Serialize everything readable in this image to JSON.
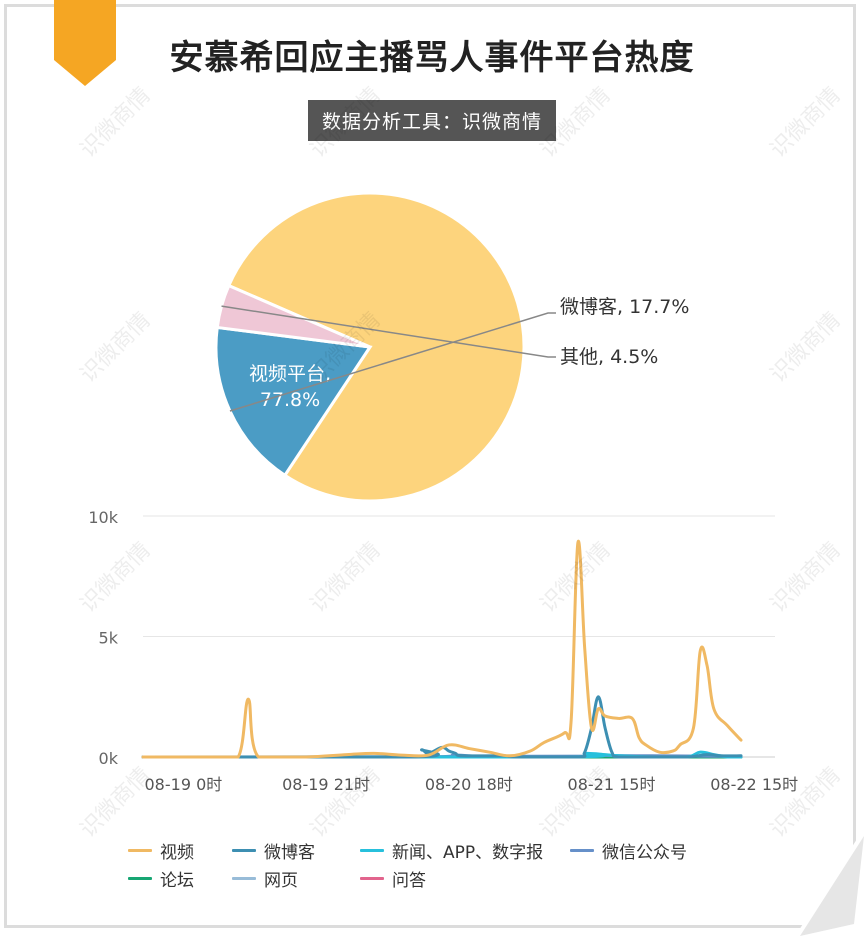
{
  "header": {
    "title": "安慕希回应主播骂人事件平台热度",
    "subtitle": "数据分析工具：识微商情"
  },
  "watermark_text": "识微商情",
  "colors": {
    "ribbon": "#f5a623",
    "pie": [
      "#fdd47d",
      "#4b9cc5",
      "#efc7d6"
    ],
    "series": [
      "#f0b963",
      "#3d8fb2",
      "#27c0dc",
      "#6690c9",
      "#17a673",
      "#98bcd8",
      "#e2648d"
    ]
  },
  "chart_data": [
    {
      "type": "pie",
      "slices": [
        {
          "label": "视频平台",
          "value": 77.8,
          "display": "视频平台,\n77.8%"
        },
        {
          "label": "微博客",
          "value": 17.7,
          "display": "微博客, 17.7%"
        },
        {
          "label": "其他",
          "value": 4.5,
          "display": "其他, 4.5%"
        }
      ]
    },
    {
      "type": "line",
      "ylim": [
        0,
        10000
      ],
      "yticks": [
        {
          "v": 0,
          "label": "0k"
        },
        {
          "v": 5000,
          "label": "5k"
        },
        {
          "v": 10000,
          "label": "10k"
        }
      ],
      "xlim": [
        0,
        93
      ],
      "xticks": [
        {
          "x": 3,
          "label": "08-19 0时"
        },
        {
          "x": 24,
          "label": "08-19 21时"
        },
        {
          "x": 45,
          "label": "08-20 18时"
        },
        {
          "x": 66,
          "label": "08-21 15时"
        },
        {
          "x": 87,
          "label": "08-22 15时"
        }
      ],
      "series": [
        {
          "name": "视频",
          "points": [
            [
              0,
              0
            ],
            [
              10,
              0
            ],
            [
              14,
              0
            ],
            [
              15.5,
              2400
            ],
            [
              17,
              0
            ],
            [
              24,
              0
            ],
            [
              30,
              100
            ],
            [
              34,
              150
            ],
            [
              38,
              80
            ],
            [
              42,
              80
            ],
            [
              45,
              500
            ],
            [
              48,
              350
            ],
            [
              51,
              200
            ],
            [
              54,
              50
            ],
            [
              57,
              250
            ],
            [
              59,
              600
            ],
            [
              62,
              1000
            ],
            [
              63,
              1500
            ],
            [
              64,
              8900
            ],
            [
              65,
              4500
            ],
            [
              66,
              1200
            ],
            [
              67,
              2000
            ],
            [
              68,
              1700
            ],
            [
              70,
              1600
            ],
            [
              72,
              1600
            ],
            [
              73,
              800
            ],
            [
              74,
              500
            ],
            [
              76,
              200
            ],
            [
              78,
              250
            ],
            [
              79,
              500
            ],
            [
              81,
              1200
            ],
            [
              82,
              4400
            ],
            [
              83,
              3800
            ],
            [
              84,
              2000
            ],
            [
              86,
              1300
            ],
            [
              88,
              700
            ]
          ]
        },
        {
          "name": "微博客",
          "points": [
            [
              0,
              0
            ],
            [
              40,
              0
            ],
            [
              41,
              300
            ],
            [
              42,
              150
            ],
            [
              44,
              400
            ],
            [
              45,
              250
            ],
            [
              46,
              150
            ],
            [
              47,
              50
            ],
            [
              53,
              50
            ],
            [
              55,
              0
            ],
            [
              64,
              0
            ],
            [
              65,
              200
            ],
            [
              66,
              1200
            ],
            [
              67,
              2500
            ],
            [
              68,
              1200
            ],
            [
              69,
              200
            ],
            [
              70,
              0
            ],
            [
              75,
              0
            ],
            [
              80,
              0
            ],
            [
              83,
              100
            ],
            [
              85,
              50
            ],
            [
              88,
              50
            ]
          ]
        },
        {
          "name": "新闻、APP、数字报",
          "points": [
            [
              0,
              0
            ],
            [
              62,
              0
            ],
            [
              65,
              150
            ],
            [
              68,
              100
            ],
            [
              70,
              50
            ],
            [
              75,
              0
            ],
            [
              80,
              0
            ],
            [
              82,
              200
            ],
            [
              84,
              100
            ],
            [
              86,
              0
            ],
            [
              88,
              0
            ]
          ]
        },
        {
          "name": "微信公众号",
          "points": [
            [
              0,
              0
            ],
            [
              40,
              0
            ],
            [
              46,
              80
            ],
            [
              50,
              30
            ],
            [
              64,
              30
            ],
            [
              68,
              60
            ],
            [
              80,
              40
            ],
            [
              88,
              20
            ]
          ]
        },
        {
          "name": "论坛",
          "points": [
            [
              0,
              0
            ],
            [
              88,
              0
            ]
          ]
        },
        {
          "name": "网页",
          "points": [
            [
              0,
              0
            ],
            [
              44,
              20
            ],
            [
              62,
              30
            ],
            [
              88,
              10
            ]
          ]
        },
        {
          "name": "问答",
          "points": [
            [
              0,
              0
            ],
            [
              88,
              0
            ]
          ]
        }
      ]
    }
  ]
}
